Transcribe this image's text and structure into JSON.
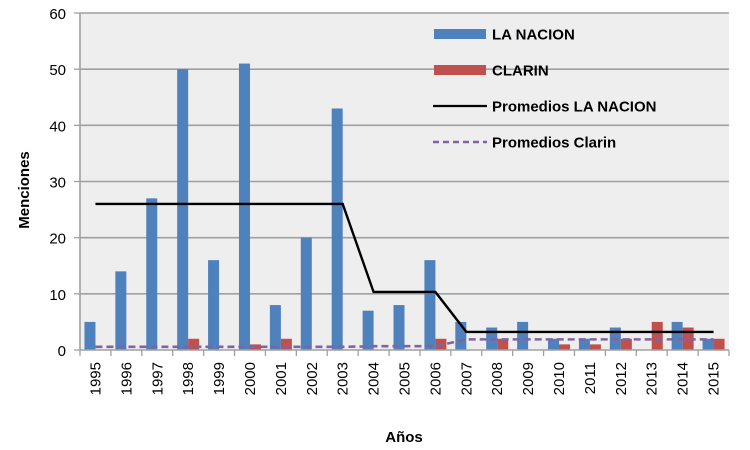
{
  "chart_data": {
    "type": "bar",
    "title": "",
    "xlabel": "Años",
    "ylabel": "Menciones",
    "ylim": [
      0,
      60
    ],
    "yticks": [
      "0",
      "10",
      "20",
      "30",
      "40",
      "50",
      "60"
    ],
    "grid": true,
    "legend_position": "top-right",
    "categories": [
      "1995",
      "1996",
      "1997",
      "1998",
      "1999",
      "2000",
      "2001",
      "2002",
      "2003",
      "2004",
      "2005",
      "2006",
      "2007",
      "2008",
      "2009",
      "2010",
      "2011",
      "2012",
      "2013",
      "2014",
      "2015"
    ],
    "series": [
      {
        "name": "LA NACION",
        "kind": "bar",
        "color": "#4f81bd",
        "values": [
          5,
          14,
          27,
          50,
          16,
          51,
          8,
          20,
          43,
          7,
          8,
          16,
          5,
          4,
          5,
          2,
          2,
          4,
          0,
          5,
          2
        ]
      },
      {
        "name": "CLARIN",
        "kind": "bar",
        "color": "#c0504d",
        "values": [
          0,
          0,
          0,
          2,
          0,
          1,
          2,
          0,
          0,
          0,
          0,
          2,
          0,
          2,
          0,
          1,
          1,
          2,
          5,
          4,
          2
        ]
      },
      {
        "name": "Promedios LA NACION",
        "kind": "line",
        "color": "#000000",
        "dash": false,
        "values": [
          26,
          26,
          26,
          26,
          26,
          26,
          26,
          26,
          26,
          10.33,
          10.33,
          10.33,
          3.22,
          3.22,
          3.22,
          3.22,
          3.22,
          3.22,
          3.22,
          3.22,
          3.22
        ]
      },
      {
        "name": "Promedios Clarin",
        "kind": "line",
        "color": "#8064a2",
        "dash": true,
        "values": [
          0.56,
          0.56,
          0.56,
          0.56,
          0.56,
          0.56,
          0.56,
          0.56,
          0.56,
          0.67,
          0.67,
          0.67,
          1.89,
          1.89,
          1.89,
          1.89,
          1.89,
          1.89,
          1.89,
          1.89,
          1.89
        ]
      }
    ]
  },
  "colors": {
    "plot_background": "#eeeeee",
    "gridline": "#a0a0a0"
  }
}
